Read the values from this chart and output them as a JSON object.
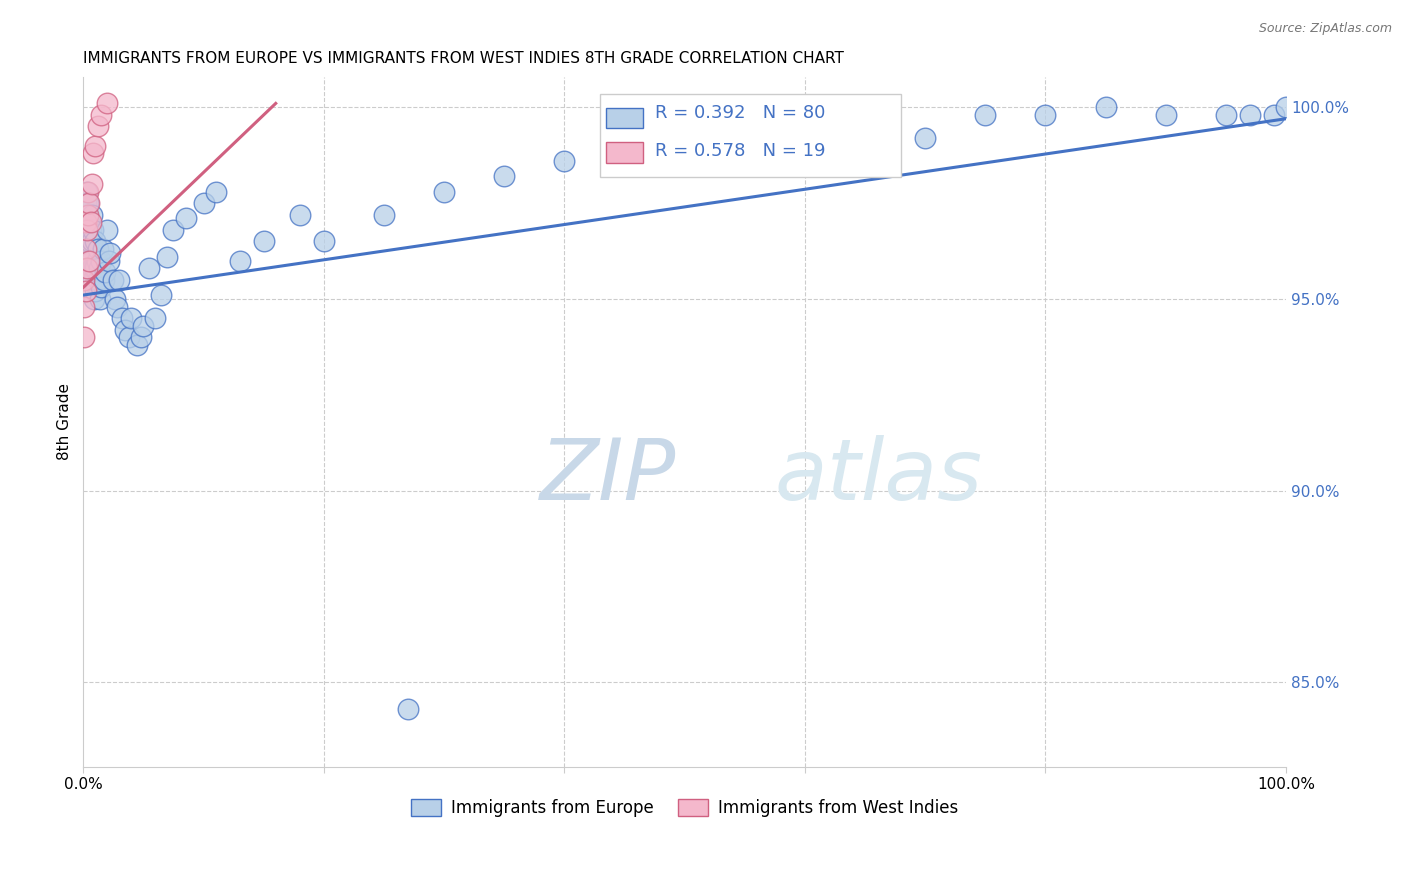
{
  "title": "IMMIGRANTS FROM EUROPE VS IMMIGRANTS FROM WEST INDIES 8TH GRADE CORRELATION CHART",
  "source": "Source: ZipAtlas.com",
  "ylabel": "8th Grade",
  "legend_blue_label": "Immigrants from Europe",
  "legend_pink_label": "Immigrants from West Indies",
  "legend_blue_R": "R = 0.392",
  "legend_blue_N": "N = 80",
  "legend_pink_R": "R = 0.578",
  "legend_pink_N": "N = 19",
  "blue_color": "#b8d0e8",
  "blue_line_color": "#4472c4",
  "pink_color": "#f4b8cc",
  "pink_line_color": "#d06080",
  "legend_text_color": "#4472c4",
  "watermark_text": "ZIPatlas",
  "watermark_color": "#d8e8f4",
  "ytick_vals": [
    0.85,
    0.9,
    0.95,
    1.0
  ],
  "ytick_labels": [
    "85.0%",
    "90.0%",
    "95.0%",
    "100.0%"
  ],
  "xtick_vals": [
    0.0,
    0.2,
    0.4,
    0.6,
    0.8,
    1.0
  ],
  "xtick_labels": [
    "0.0%",
    "",
    "",
    "",
    "",
    "100.0%"
  ],
  "xlim": [
    0.0,
    1.0
  ],
  "ylim": [
    0.828,
    1.008
  ],
  "blue_line_x": [
    0.0,
    1.0
  ],
  "blue_line_y": [
    0.951,
    0.997
  ],
  "pink_line_x": [
    0.0,
    0.16
  ],
  "pink_line_y": [
    0.953,
    1.001
  ],
  "blue_x": [
    0.001,
    0.001,
    0.002,
    0.002,
    0.002,
    0.003,
    0.003,
    0.003,
    0.003,
    0.004,
    0.004,
    0.004,
    0.005,
    0.005,
    0.005,
    0.006,
    0.006,
    0.006,
    0.007,
    0.007,
    0.007,
    0.008,
    0.008,
    0.009,
    0.009,
    0.01,
    0.01,
    0.01,
    0.011,
    0.012,
    0.012,
    0.013,
    0.014,
    0.015,
    0.015,
    0.016,
    0.017,
    0.018,
    0.02,
    0.021,
    0.022,
    0.025,
    0.026,
    0.028,
    0.03,
    0.032,
    0.035,
    0.038,
    0.04,
    0.045,
    0.048,
    0.05,
    0.055,
    0.06,
    0.065,
    0.07,
    0.075,
    0.085,
    0.1,
    0.11,
    0.13,
    0.15,
    0.18,
    0.2,
    0.25,
    0.3,
    0.35,
    0.4,
    0.5,
    0.6,
    0.7,
    0.75,
    0.8,
    0.85,
    0.9,
    0.95,
    0.97,
    0.99,
    1.0,
    0.27
  ],
  "blue_y": [
    0.972,
    0.968,
    0.975,
    0.965,
    0.97,
    0.978,
    0.972,
    0.966,
    0.962,
    0.975,
    0.968,
    0.96,
    0.97,
    0.965,
    0.958,
    0.968,
    0.96,
    0.956,
    0.972,
    0.965,
    0.958,
    0.968,
    0.955,
    0.958,
    0.95,
    0.965,
    0.958,
    0.952,
    0.96,
    0.963,
    0.955,
    0.958,
    0.95,
    0.96,
    0.953,
    0.963,
    0.955,
    0.957,
    0.968,
    0.96,
    0.962,
    0.955,
    0.95,
    0.948,
    0.955,
    0.945,
    0.942,
    0.94,
    0.945,
    0.938,
    0.94,
    0.943,
    0.958,
    0.945,
    0.951,
    0.961,
    0.968,
    0.971,
    0.975,
    0.978,
    0.96,
    0.965,
    0.972,
    0.965,
    0.972,
    0.978,
    0.982,
    0.986,
    0.988,
    0.99,
    0.992,
    0.998,
    0.998,
    1.0,
    0.998,
    0.998,
    0.998,
    0.998,
    1.0,
    0.843
  ],
  "pink_x": [
    0.001,
    0.001,
    0.001,
    0.002,
    0.002,
    0.002,
    0.003,
    0.003,
    0.004,
    0.004,
    0.005,
    0.005,
    0.006,
    0.007,
    0.008,
    0.01,
    0.012,
    0.015,
    0.02
  ],
  "pink_y": [
    0.955,
    0.948,
    0.94,
    0.97,
    0.963,
    0.952,
    0.968,
    0.958,
    0.978,
    0.972,
    0.975,
    0.96,
    0.97,
    0.98,
    0.988,
    0.99,
    0.995,
    0.998,
    1.001
  ]
}
